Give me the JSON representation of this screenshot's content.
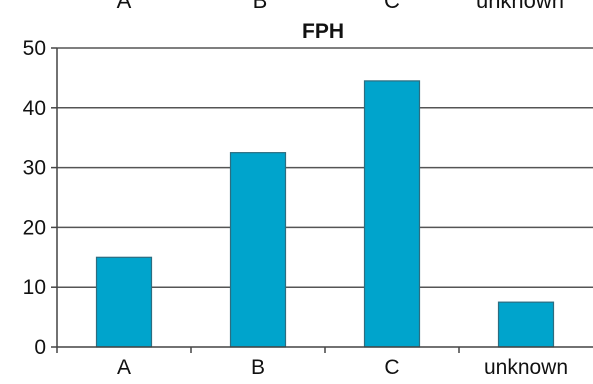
{
  "chart_data": {
    "type": "bar",
    "title": "FPH",
    "categories": [
      "A",
      "B",
      "C",
      "unknown"
    ],
    "values": [
      15,
      32.5,
      44.5,
      7.5
    ],
    "xlabel": "",
    "ylabel": "",
    "ylim": [
      0,
      50
    ],
    "yticks": [
      0,
      10,
      20,
      30,
      40,
      50
    ],
    "grid": true,
    "legend": "none",
    "bar_color": "#00a4cc"
  },
  "clipped_top_labels": [
    "A",
    "B",
    "C",
    "unknown"
  ]
}
